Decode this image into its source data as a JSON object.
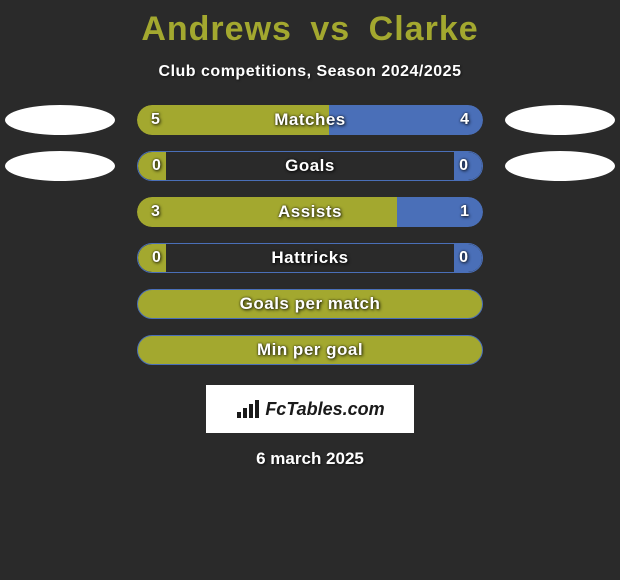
{
  "header": {
    "player1": "Andrews",
    "vs": "vs",
    "player2": "Clarke",
    "title_color": "#a3a82f",
    "title_fontsize": 34,
    "subtitle": "Club competitions, Season 2024/2025",
    "subtitle_fontsize": 16
  },
  "colors": {
    "background": "#2a2a2a",
    "player1_bar": "#a3a82f",
    "player2_bar": "#4a6fb8",
    "empty_bar": "#a3a82f",
    "avatar_bg": "#ffffff",
    "text_shadow": "rgba(0,0,0,0.8)"
  },
  "bar": {
    "track_width": 346,
    "track_height": 30,
    "border_radius": 15,
    "font_size": 17
  },
  "stats": [
    {
      "label": "Matches",
      "left_value": "5",
      "right_value": "4",
      "left_num": 5,
      "right_num": 4,
      "show_avatars": true,
      "show_values": true,
      "full_fill": false
    },
    {
      "label": "Goals",
      "left_value": "0",
      "right_value": "0",
      "left_num": 0,
      "right_num": 0,
      "show_avatars": true,
      "show_values": true,
      "full_fill": false
    },
    {
      "label": "Assists",
      "left_value": "3",
      "right_value": "1",
      "left_num": 3,
      "right_num": 1,
      "show_avatars": false,
      "show_values": true,
      "full_fill": false
    },
    {
      "label": "Hattricks",
      "left_value": "0",
      "right_value": "0",
      "left_num": 0,
      "right_num": 0,
      "show_avatars": false,
      "show_values": true,
      "full_fill": false
    },
    {
      "label": "Goals per match",
      "left_value": "",
      "right_value": "",
      "left_num": 0,
      "right_num": 0,
      "show_avatars": false,
      "show_values": false,
      "full_fill": true
    },
    {
      "label": "Min per goal",
      "left_value": "",
      "right_value": "",
      "left_num": 0,
      "right_num": 0,
      "show_avatars": false,
      "show_values": false,
      "full_fill": true
    }
  ],
  "footer": {
    "logo_text": "FcTables.com",
    "logo_bg": "#ffffff",
    "logo_text_color": "#1a1a1a",
    "logo_fontsize": 18,
    "date": "6 march 2025",
    "date_fontsize": 17
  }
}
